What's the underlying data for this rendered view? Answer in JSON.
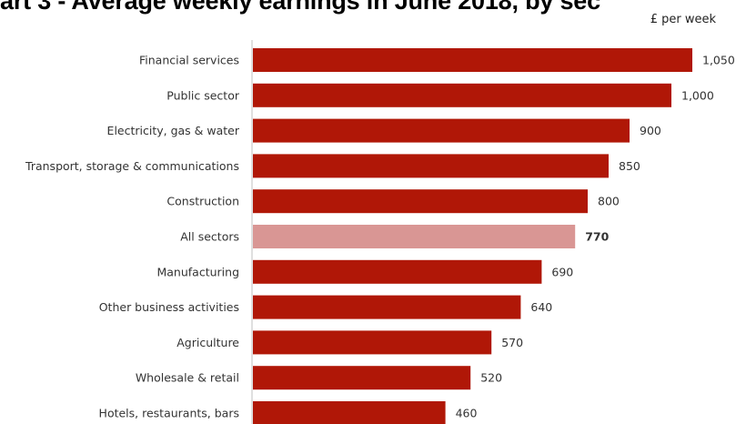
{
  "chart_data": {
    "type": "bar",
    "orientation": "horizontal",
    "title": "art 3 - Average weekly earnings in June 2018, by sec",
    "units": "£ per week",
    "categories": [
      "Financial services",
      "Public sector",
      "Electricity, gas & water",
      "Transport, storage & communications",
      "Construction",
      "All sectors",
      "Manufacturing",
      "Other business activities",
      "Agriculture",
      "Wholesale & retail",
      "Hotels, restaurants, bars"
    ],
    "values": [
      1050,
      1000,
      900,
      850,
      800,
      770,
      690,
      640,
      570,
      520,
      460
    ],
    "value_labels": [
      "1,050",
      "1,000",
      "900",
      "850",
      "800",
      "770",
      "690",
      "640",
      "570",
      "520",
      "460"
    ],
    "highlight_category": "All sectors",
    "colors": {
      "bar": "#b01707",
      "highlight": "#d99694",
      "axis": "#bfbfbf"
    },
    "xlim": [
      0,
      1100
    ],
    "grid": false,
    "legend": "none"
  }
}
